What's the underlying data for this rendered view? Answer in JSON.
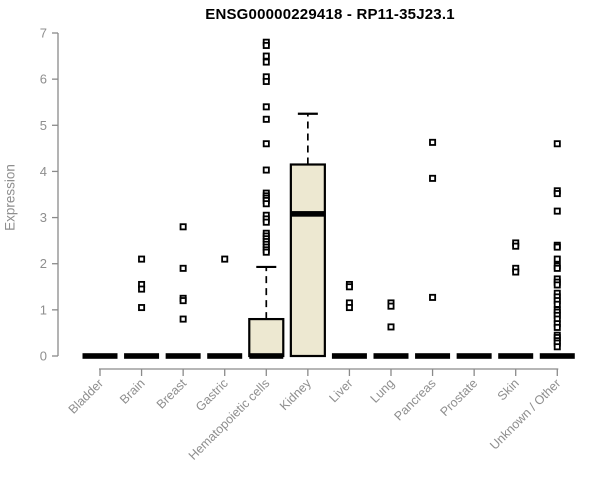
{
  "chart_data": {
    "type": "boxplot",
    "title": "ENSG00000229418 - RP11-35J23.1",
    "ylabel": "Expression",
    "xlabel": "",
    "ylim": [
      0,
      7
    ],
    "yticks": [
      0,
      1,
      2,
      3,
      4,
      5,
      6,
      7
    ],
    "grid": false,
    "legend": "none",
    "categories": [
      "Bladder",
      "Brain",
      "Breast",
      "Gastric",
      "Hematopoietic cells",
      "Kidney",
      "Liver",
      "Lung",
      "Pancreas",
      "Prostate",
      "Skin",
      "Unknown / Other"
    ],
    "boxes": [
      {
        "category": "Bladder",
        "q1": 0,
        "median": 0,
        "q3": 0,
        "whisker_low": 0,
        "whisker_high": 0,
        "outliers": []
      },
      {
        "category": "Brain",
        "q1": 0,
        "median": 0,
        "q3": 0,
        "whisker_low": 0,
        "whisker_high": 0,
        "outliers": [
          2.1,
          1.55,
          1.45,
          1.05
        ]
      },
      {
        "category": "Breast",
        "q1": 0,
        "median": 0,
        "q3": 0,
        "whisker_low": 0,
        "whisker_high": 0,
        "outliers": [
          2.8,
          1.9,
          1.25,
          1.2,
          0.8
        ]
      },
      {
        "category": "Gastric",
        "q1": 0,
        "median": 0,
        "q3": 0,
        "whisker_low": 0,
        "whisker_high": 0,
        "outliers": [
          2.1
        ]
      },
      {
        "category": "Hematopoietic cells",
        "q1": 0,
        "median": 0,
        "q3": 0.8,
        "whisker_low": 0,
        "whisker_high": 1.93,
        "outliers": [
          6.8,
          6.73,
          6.5,
          6.37,
          6.05,
          5.95,
          5.4,
          5.13,
          4.6,
          4.03,
          3.53,
          3.47,
          3.42,
          3.37,
          3.3,
          3.05,
          2.97,
          2.9,
          2.66,
          2.6,
          2.54,
          2.48,
          2.42,
          2.36,
          2.3,
          2.25
        ]
      },
      {
        "category": "Kidney",
        "q1": 0,
        "median": 3.08,
        "q3": 4.15,
        "whisker_low": 0,
        "whisker_high": 5.25,
        "outliers": []
      },
      {
        "category": "Liver",
        "q1": 0,
        "median": 0,
        "q3": 0,
        "whisker_low": 0,
        "whisker_high": 0,
        "outliers": [
          1.55,
          1.5,
          1.15,
          1.05
        ]
      },
      {
        "category": "Lung",
        "q1": 0,
        "median": 0,
        "q3": 0,
        "whisker_low": 0,
        "whisker_high": 0,
        "outliers": [
          1.15,
          1.08,
          0.63
        ]
      },
      {
        "category": "Pancreas",
        "q1": 0,
        "median": 0,
        "q3": 0,
        "whisker_low": 0,
        "whisker_high": 0,
        "outliers": [
          4.63,
          3.85,
          1.27
        ]
      },
      {
        "category": "Prostate",
        "q1": 0,
        "median": 0,
        "q3": 0,
        "whisker_low": 0,
        "whisker_high": 0,
        "outliers": []
      },
      {
        "category": "Skin",
        "q1": 0,
        "median": 0,
        "q3": 0,
        "whisker_low": 0,
        "whisker_high": 0,
        "outliers": [
          2.45,
          2.38,
          1.9,
          1.82
        ]
      },
      {
        "category": "Unknown / Other",
        "q1": 0,
        "median": 0,
        "q3": 0,
        "whisker_low": 0,
        "whisker_high": 0,
        "outliers": [
          4.6,
          3.58,
          3.52,
          3.14,
          2.4,
          2.36,
          2.1,
          1.95,
          1.9,
          1.67,
          1.6,
          1.54,
          1.36,
          1.28,
          1.2,
          1.12,
          1.0,
          0.95,
          0.88,
          0.8,
          0.7,
          0.62,
          0.45,
          0.4,
          0.33,
          0.28,
          0.2
        ]
      }
    ],
    "colors": {
      "box_fill": "#ede8d1",
      "box_stroke": "#000000",
      "median": "#000000",
      "whisker": "#000000",
      "outlier_stroke": "#000000",
      "outlier_fill": "#ffffff",
      "axis": "#8a8a8a",
      "tick_label": "#8e8e8e",
      "title": "#000000"
    }
  }
}
